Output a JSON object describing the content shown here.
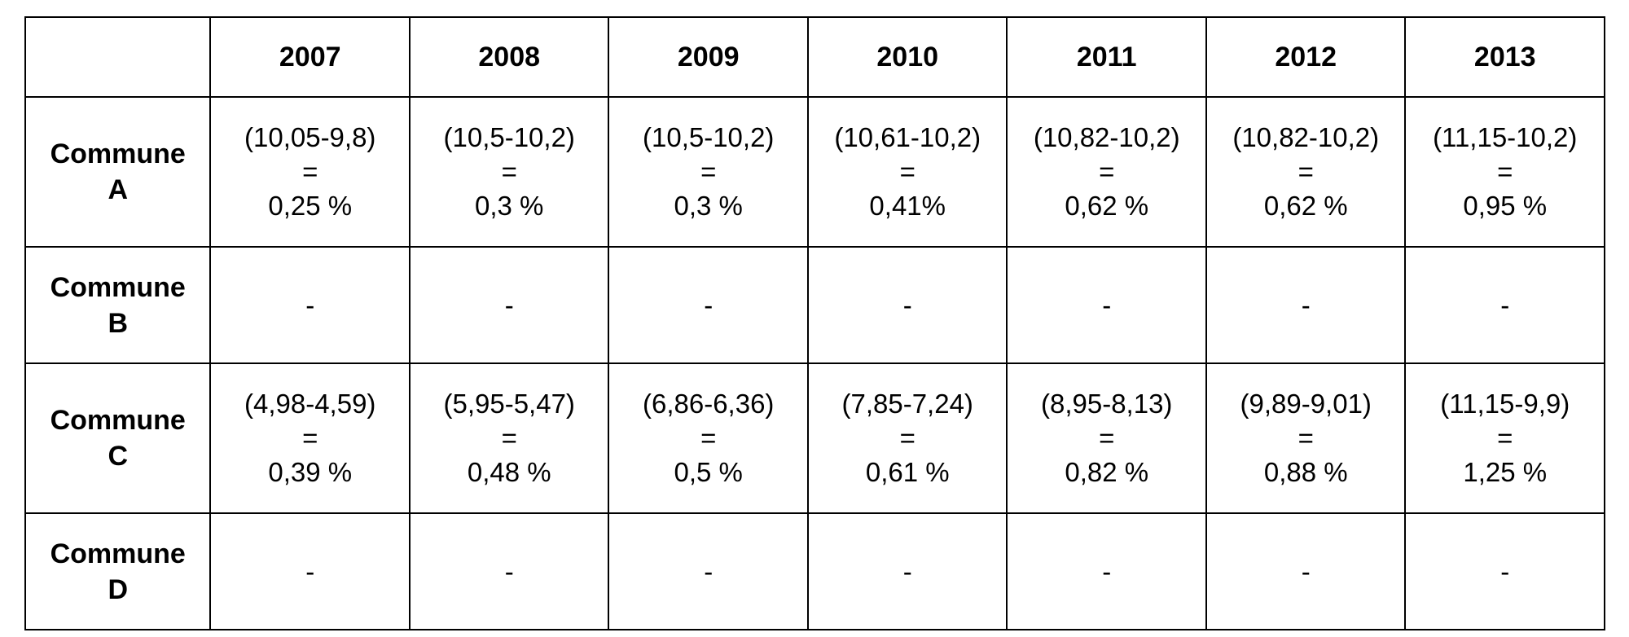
{
  "table": {
    "corner": "",
    "years": [
      "2007",
      "2008",
      "2009",
      "2010",
      "2011",
      "2012",
      "2013"
    ],
    "rows": [
      {
        "name_line1": "Commune",
        "name_line2": "A",
        "cells": [
          {
            "formula": "(10,05-9,8)",
            "equals": "=",
            "result": "0,25 %"
          },
          {
            "formula": "(10,5-10,2)",
            "equals": "=",
            "result": "0,3 %"
          },
          {
            "formula": "(10,5-10,2)",
            "equals": "=",
            "result": "0,3 %"
          },
          {
            "formula": "(10,61-10,2)",
            "equals": "=",
            "result": "0,41%"
          },
          {
            "formula": "(10,82-10,2)",
            "equals": "=",
            "result": "0,62 %"
          },
          {
            "formula": "(10,82-10,2)",
            "equals": "=",
            "result": "0,62 %"
          },
          {
            "formula": "(11,15-10,2)",
            "equals": "=",
            "result": "0,95 %"
          }
        ]
      },
      {
        "name_line1": "Commune",
        "name_line2": "B",
        "cells": [
          "-",
          "-",
          "-",
          "-",
          "-",
          "-",
          "-"
        ]
      },
      {
        "name_line1": "Commune",
        "name_line2": "C",
        "cells": [
          {
            "formula": "(4,98-4,59)",
            "equals": "=",
            "result": "0,39 %"
          },
          {
            "formula": "(5,95-5,47)",
            "equals": "=",
            "result": "0,48 %"
          },
          {
            "formula": "(6,86-6,36)",
            "equals": "=",
            "result": "0,5 %"
          },
          {
            "formula": "(7,85-7,24)",
            "equals": "=",
            "result": "0,61 %"
          },
          {
            "formula": "(8,95-8,13)",
            "equals": "=",
            "result": "0,82 %"
          },
          {
            "formula": "(9,89-9,01)",
            "equals": "=",
            "result": "0,88 %"
          },
          {
            "formula": "(11,15-9,9)",
            "equals": "=",
            "result": "1,25 %"
          }
        ]
      },
      {
        "name_line1": "Commune",
        "name_line2": "D",
        "cells": [
          "-",
          "-",
          "-",
          "-",
          "-",
          "-",
          "-"
        ]
      }
    ]
  }
}
